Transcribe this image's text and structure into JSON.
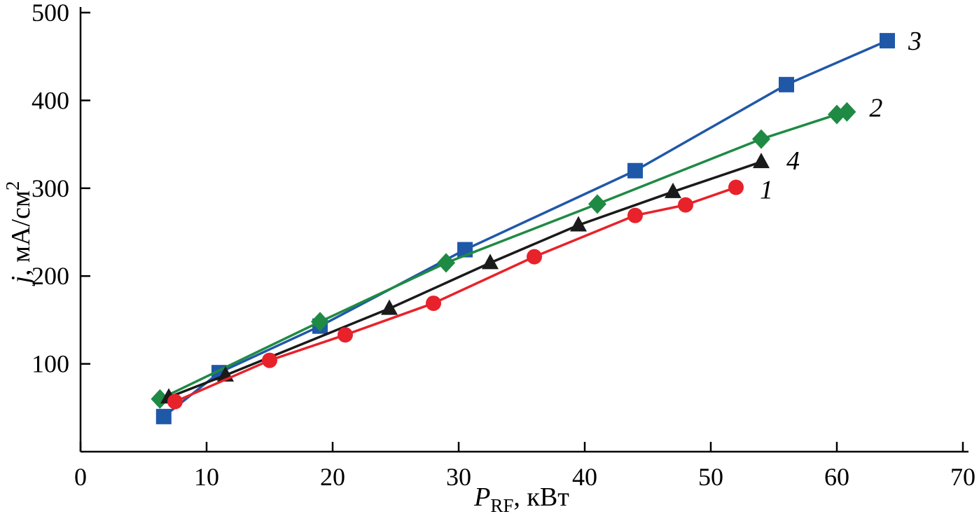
{
  "figure": {
    "title": "",
    "background": "#ffffff",
    "axis_color": "#000000"
  },
  "chart_data": {
    "type": "line",
    "title": "",
    "xlabel": "P_RF, кВт",
    "ylabel": "j, мА/см^2",
    "xlabel_parts": [
      {
        "t": "P",
        "style": "italic"
      },
      {
        "t": "RF",
        "style": "sub"
      },
      {
        "t": ", кВт",
        "style": "normal"
      }
    ],
    "ylabel_parts": [
      {
        "t": "j",
        "style": "italic"
      },
      {
        "t": ", мА/см",
        "style": "normal"
      },
      {
        "t": "2",
        "style": "sup"
      }
    ],
    "xlim": [
      0,
      70
    ],
    "ylim": [
      0,
      500
    ],
    "x_ticks": [
      0,
      10,
      20,
      30,
      40,
      50,
      60,
      70
    ],
    "y_ticks": [
      100,
      200,
      300,
      400,
      500
    ],
    "grid": false,
    "legend_position": "curve-end-labels",
    "series": [
      {
        "name": "3",
        "marker": "square",
        "color": "#2058a8",
        "x": [
          6.6,
          11,
          19,
          30.5,
          44,
          56,
          64
        ],
        "y": [
          40,
          90,
          143,
          230,
          320,
          418,
          468
        ],
        "label_offset": [
          30,
          0
        ]
      },
      {
        "name": "2",
        "marker": "diamond",
        "color": "#1f8a44",
        "x": [
          6.3,
          19,
          29,
          41,
          54,
          60,
          60.8
        ],
        "y": [
          60,
          148,
          215,
          282,
          356,
          384,
          387
        ],
        "label_offset": [
          32,
          -6
        ]
      },
      {
        "name": "4",
        "marker": "triangle",
        "color": "#1a1a1a",
        "x": [
          7,
          11.5,
          24.5,
          32.5,
          39.5,
          47,
          54
        ],
        "y": [
          62,
          87,
          163,
          215,
          258,
          296,
          330
        ],
        "label_offset": [
          36,
          -2
        ]
      },
      {
        "name": "1",
        "marker": "circle",
        "color": "#e8222a",
        "x": [
          7.5,
          15,
          21,
          28,
          36,
          44,
          48,
          52
        ],
        "y": [
          57,
          104,
          133,
          169,
          222,
          269,
          281,
          301
        ],
        "label_offset": [
          34,
          3
        ]
      }
    ]
  }
}
